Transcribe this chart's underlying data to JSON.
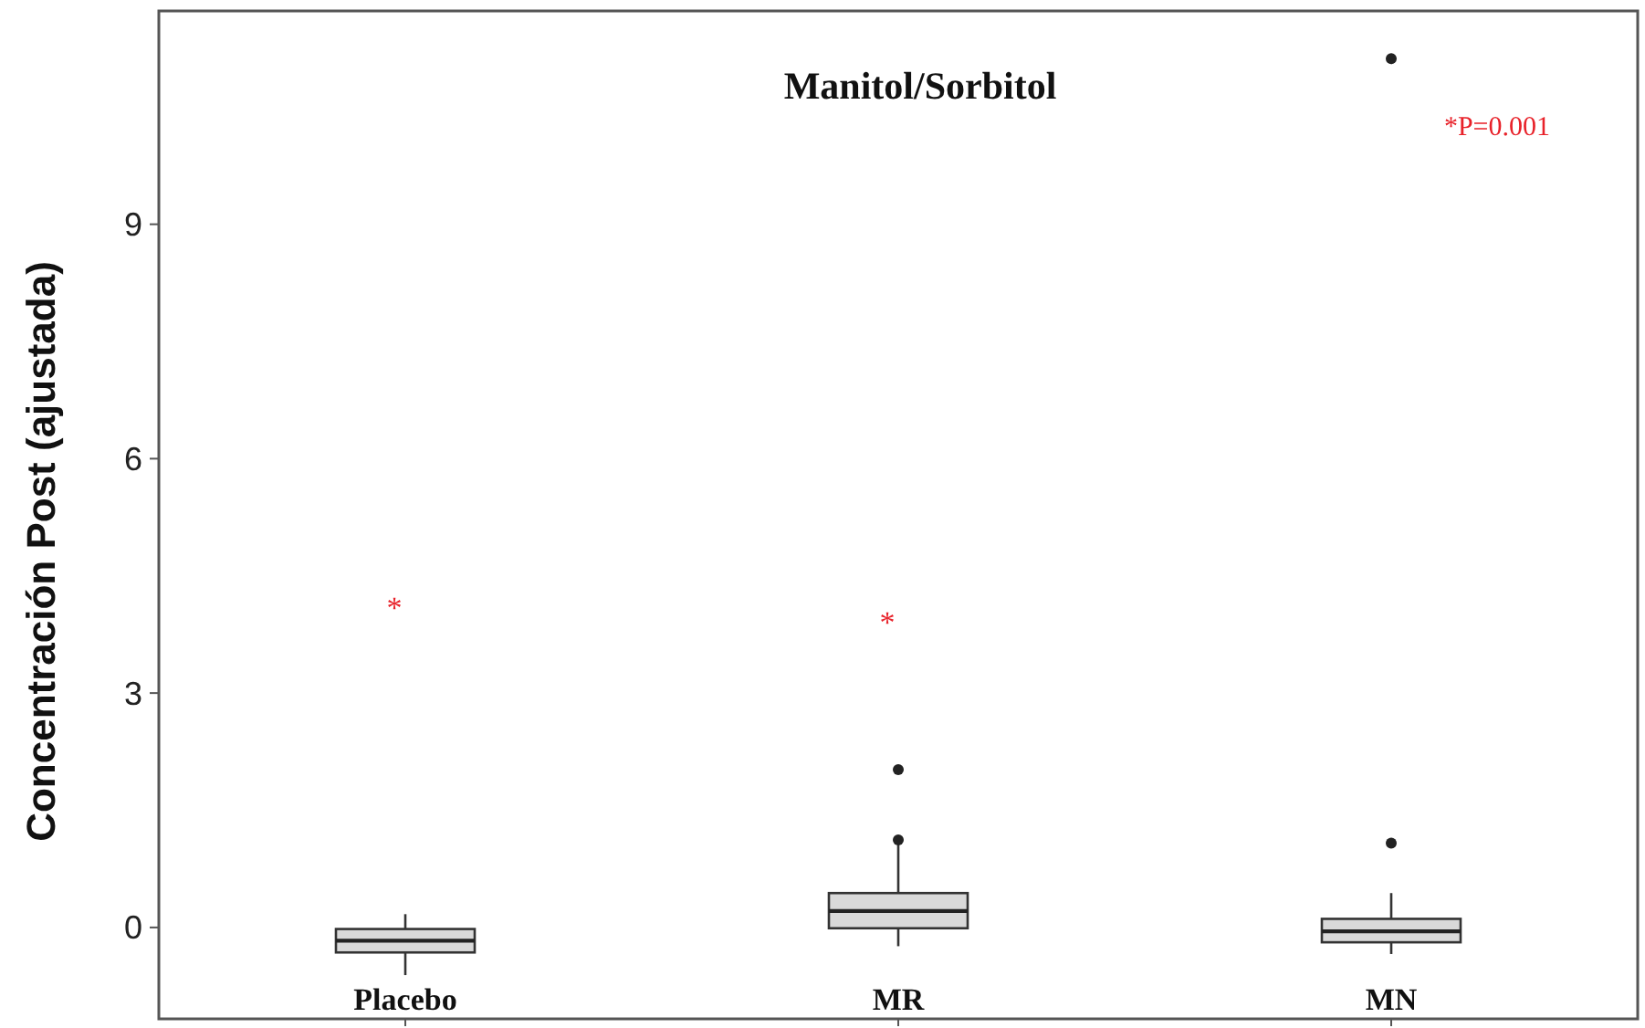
{
  "chart_data": {
    "type": "box",
    "title": "Manitol/Sorbitol",
    "ylabel": "Concentración Post (ajustada)",
    "categories": [
      "Placebo",
      "MR",
      "MN"
    ],
    "boxes": [
      {
        "low": -0.61,
        "q1": -0.32,
        "median": -0.17,
        "q3": -0.02,
        "high": 0.17
      },
      {
        "low": -0.24,
        "q1": -0.01,
        "median": 0.21,
        "q3": 0.44,
        "high": 1.1,
        "outliers": [
          1.12,
          2.02
        ]
      },
      {
        "low": -0.34,
        "q1": -0.19,
        "median": -0.05,
        "q3": 0.11,
        "high": 0.44,
        "outliers": [
          1.08,
          11.12
        ]
      }
    ],
    "color": "#d9d9d9",
    "ylim": [
      -1.17,
      11.73
    ],
    "yticks": [
      0,
      3,
      6,
      9
    ],
    "grid": false,
    "annotations": [
      "*",
      "*",
      "*P=0.001"
    ]
  }
}
